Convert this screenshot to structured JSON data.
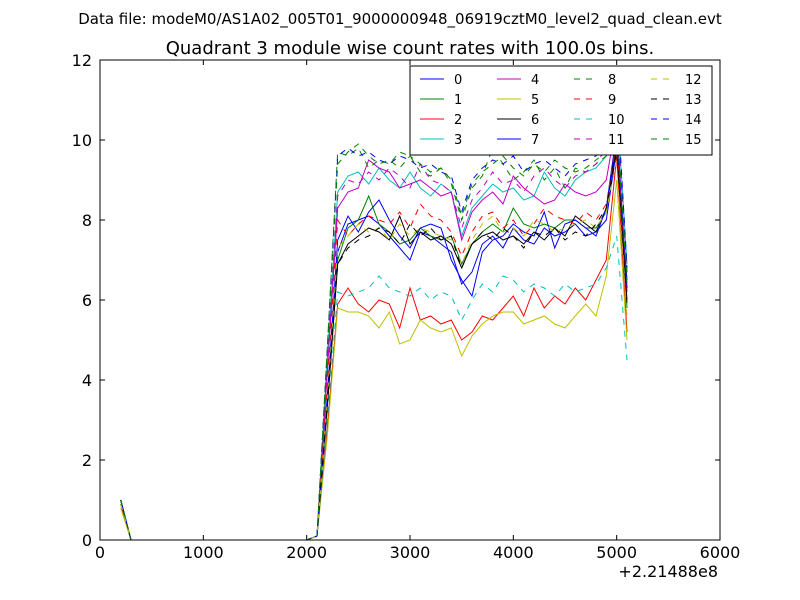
{
  "suptitle": "Data file: modeM0/AS1A02_005T01_9000000948_06919cztM0_level2_quad_clean.evt",
  "chart_data": {
    "type": "line",
    "title": "Quadrant 3 module wise count rates with 100.0s bins.",
    "xlabel": "",
    "ylabel": "",
    "x_offset_label": "+2.21488e8",
    "xlim": [
      0,
      6000
    ],
    "ylim": [
      0,
      12
    ],
    "x_ticks": [
      0,
      1000,
      2000,
      3000,
      4000,
      5000,
      6000
    ],
    "y_ticks": [
      0,
      2,
      4,
      6,
      8,
      10,
      12
    ],
    "grid": false,
    "legend_placement": "top-right",
    "legend_columns": 4,
    "x": [
      200,
      300,
      400,
      500,
      600,
      700,
      800,
      900,
      1000,
      1100,
      1200,
      1300,
      1400,
      1500,
      1600,
      1700,
      1800,
      1900,
      2000,
      2100,
      2200,
      2300,
      2400,
      2500,
      2600,
      2700,
      2800,
      2900,
      3000,
      3100,
      3200,
      3300,
      3400,
      3500,
      3600,
      3700,
      3800,
      3900,
      4000,
      4100,
      4200,
      4300,
      4400,
      4500,
      4600,
      4700,
      4800,
      4900,
      5000,
      5100
    ],
    "series": [
      {
        "name": "0",
        "color": "#0000ff",
        "dash": false,
        "values": [
          1.0,
          0.0,
          0,
          0,
          0,
          0,
          0,
          0,
          0,
          0,
          0,
          0,
          0,
          0,
          0,
          0,
          0,
          0,
          0,
          0.1,
          3.5,
          7.2,
          7.9,
          8.0,
          8.1,
          7.9,
          7.6,
          7.3,
          7.0,
          7.7,
          7.6,
          7.4,
          7.2,
          6.4,
          6.7,
          7.4,
          7.6,
          7.3,
          7.8,
          7.5,
          7.4,
          7.8,
          7.6,
          7.7,
          7.9,
          7.6,
          7.7,
          8.0,
          9.8,
          6.5
        ]
      },
      {
        "name": "1",
        "color": "#008000",
        "dash": false,
        "values": [
          0.9,
          0.0,
          0,
          0,
          0,
          0,
          0,
          0,
          0,
          0,
          0,
          0,
          0,
          0,
          0,
          0,
          0,
          0,
          0,
          0.1,
          3.4,
          7.0,
          7.8,
          8.0,
          8.6,
          7.9,
          7.7,
          7.4,
          7.5,
          7.8,
          7.6,
          7.5,
          7.6,
          6.9,
          7.4,
          7.7,
          7.9,
          7.7,
          8.3,
          7.9,
          7.8,
          7.9,
          7.8,
          8.0,
          8.0,
          7.8,
          7.8,
          8.2,
          10.2,
          5.8
        ]
      },
      {
        "name": "2",
        "color": "#ff0000",
        "dash": false,
        "values": [
          0.9,
          0.0,
          0,
          0,
          0,
          0,
          0,
          0,
          0,
          0,
          0,
          0,
          0,
          0,
          0,
          0,
          0,
          0,
          0,
          0.1,
          2.8,
          5.9,
          6.3,
          5.9,
          5.7,
          6.0,
          5.9,
          5.3,
          6.3,
          5.5,
          5.6,
          5.4,
          5.5,
          5.0,
          5.2,
          5.6,
          5.5,
          5.8,
          6.1,
          5.6,
          6.3,
          5.8,
          6.1,
          5.9,
          6.3,
          6.0,
          6.5,
          7.0,
          9.6,
          5.2
        ]
      },
      {
        "name": "3",
        "color": "#00bfbf",
        "dash": false,
        "values": [
          1.0,
          0.0,
          0,
          0,
          0,
          0,
          0,
          0,
          0,
          0,
          0,
          0,
          0,
          0,
          0,
          0,
          0,
          0,
          0,
          0.1,
          4.5,
          8.7,
          9.1,
          9.2,
          8.9,
          9.3,
          9.0,
          8.8,
          9.2,
          8.8,
          8.6,
          8.9,
          8.7,
          7.6,
          8.3,
          8.6,
          8.9,
          8.7,
          8.8,
          8.5,
          8.6,
          9.2,
          8.8,
          8.6,
          9.0,
          9.2,
          9.3,
          9.6,
          11.0,
          6.9
        ]
      },
      {
        "name": "4",
        "color": "#bf00bf",
        "dash": false,
        "values": [
          1.0,
          0.0,
          0,
          0,
          0,
          0,
          0,
          0,
          0,
          0,
          0,
          0,
          0,
          0,
          0,
          0,
          0,
          0,
          0,
          0.1,
          4.2,
          8.3,
          8.7,
          8.8,
          9.5,
          9.3,
          9.2,
          8.8,
          8.9,
          9.0,
          8.8,
          8.6,
          8.7,
          7.5,
          8.2,
          8.5,
          8.7,
          8.4,
          9.1,
          8.8,
          8.6,
          8.4,
          8.5,
          8.9,
          8.7,
          8.6,
          8.7,
          9.0,
          10.5,
          6.2
        ]
      },
      {
        "name": "5",
        "color": "#bfbf00",
        "dash": false,
        "values": [
          0.8,
          0.0,
          0,
          0,
          0,
          0,
          0,
          0,
          0,
          0,
          0,
          0,
          0,
          0,
          0,
          0,
          0,
          0,
          0,
          0.1,
          2.6,
          5.8,
          5.7,
          5.7,
          5.6,
          5.3,
          5.7,
          4.9,
          5.0,
          5.5,
          5.3,
          5.2,
          5.3,
          4.6,
          5.1,
          5.4,
          5.6,
          5.7,
          5.7,
          5.4,
          5.5,
          5.6,
          5.4,
          5.3,
          5.6,
          5.9,
          5.6,
          6.6,
          9.0,
          5.0
        ]
      },
      {
        "name": "6",
        "color": "#000000",
        "dash": false,
        "values": [
          1.0,
          0.0,
          0,
          0,
          0,
          0,
          0,
          0,
          0,
          0,
          0,
          0,
          0,
          0,
          0,
          0,
          0,
          0,
          0,
          0.1,
          3.3,
          6.9,
          7.4,
          7.6,
          7.8,
          7.7,
          7.5,
          8.1,
          7.4,
          7.7,
          7.5,
          7.6,
          7.4,
          6.8,
          7.4,
          7.6,
          7.7,
          7.5,
          7.6,
          7.4,
          7.7,
          7.5,
          7.8,
          7.6,
          8.1,
          7.9,
          7.7,
          8.3,
          9.9,
          6.0
        ]
      },
      {
        "name": "7",
        "color": "#0000ff",
        "dash": false,
        "values": [
          1.0,
          0.0,
          0,
          0,
          0,
          0,
          0,
          0,
          0,
          0,
          0,
          0,
          0,
          0,
          0,
          0,
          0,
          0,
          0,
          0.1,
          3.6,
          7.5,
          8.1,
          7.7,
          8.2,
          8.5,
          8.0,
          7.6,
          7.3,
          7.8,
          7.9,
          7.8,
          7.0,
          6.5,
          6.1,
          7.2,
          7.5,
          7.6,
          7.9,
          7.7,
          7.6,
          8.2,
          7.3,
          7.9,
          8.0,
          7.8,
          7.6,
          8.3,
          10.2,
          6.3
        ]
      },
      {
        "name": "8",
        "color": "#008000",
        "dash": true,
        "values": [
          0.9,
          0.0,
          0,
          0,
          0,
          0,
          0,
          0,
          0,
          0,
          0,
          0,
          0,
          0,
          0,
          0,
          0,
          0,
          0,
          0.1,
          4.8,
          9.7,
          9.6,
          9.8,
          9.3,
          9.5,
          9.4,
          9.7,
          9.6,
          9.2,
          9.1,
          9.3,
          8.9,
          8.0,
          8.8,
          9.1,
          9.8,
          9.4,
          9.0,
          9.2,
          9.5,
          9.0,
          9.3,
          8.8,
          9.3,
          9.2,
          9.4,
          9.6,
          10.4,
          6.4
        ]
      },
      {
        "name": "9",
        "color": "#ff0000",
        "dash": true,
        "values": [
          0.9,
          0.0,
          0,
          0,
          0,
          0,
          0,
          0,
          0,
          0,
          0,
          0,
          0,
          0,
          0,
          0,
          0,
          0,
          0,
          0.1,
          3.9,
          8.0,
          7.6,
          7.9,
          8.1,
          8.0,
          7.9,
          8.2,
          7.8,
          8.4,
          8.1,
          8.0,
          7.7,
          7.1,
          7.7,
          8.1,
          8.2,
          7.8,
          8.0,
          7.6,
          7.9,
          8.3,
          8.1,
          8.0,
          7.9,
          8.2,
          8.0,
          8.4,
          10.0,
          6.0
        ]
      },
      {
        "name": "10",
        "color": "#00bfbf",
        "dash": true,
        "values": [
          0.9,
          0.0,
          0,
          0,
          0,
          0,
          0,
          0,
          0,
          0,
          0,
          0,
          0,
          0,
          0,
          0,
          0,
          0,
          0,
          0.1,
          3.0,
          6.2,
          6.1,
          6.2,
          6.3,
          6.6,
          6.3,
          6.2,
          6.1,
          6.3,
          6.0,
          6.2,
          6.1,
          5.5,
          6.0,
          6.4,
          6.2,
          6.6,
          6.5,
          6.2,
          6.4,
          6.3,
          6.1,
          6.4,
          6.2,
          6.3,
          6.4,
          6.8,
          7.6,
          4.5
        ]
      },
      {
        "name": "11",
        "color": "#bf00bf",
        "dash": true,
        "values": [
          1.0,
          0.0,
          0,
          0,
          0,
          0,
          0,
          0,
          0,
          0,
          0,
          0,
          0,
          0,
          0,
          0,
          0,
          0,
          0,
          0.1,
          4.4,
          8.6,
          9.0,
          8.9,
          9.2,
          9.0,
          9.3,
          9.1,
          8.8,
          9.4,
          9.0,
          8.9,
          8.7,
          7.8,
          8.5,
          8.8,
          9.2,
          8.9,
          9.0,
          8.7,
          9.1,
          9.3,
          9.0,
          8.8,
          9.1,
          9.2,
          9.4,
          9.8,
          11.0,
          6.7
        ]
      },
      {
        "name": "12",
        "color": "#bfbf00",
        "dash": true,
        "values": [
          0.9,
          0.0,
          0,
          0,
          0,
          0,
          0,
          0,
          0,
          0,
          0,
          0,
          0,
          0,
          0,
          0,
          0,
          0,
          0,
          0.1,
          3.5,
          7.3,
          7.6,
          7.9,
          7.7,
          7.8,
          7.5,
          7.9,
          7.6,
          7.8,
          7.7,
          7.6,
          7.5,
          6.9,
          7.5,
          7.9,
          8.1,
          7.7,
          7.8,
          7.6,
          8.0,
          7.9,
          7.7,
          7.8,
          7.9,
          8.0,
          7.8,
          8.2,
          9.5,
          5.6
        ]
      },
      {
        "name": "13",
        "color": "#000000",
        "dash": true,
        "values": [
          1.0,
          0.0,
          0,
          0,
          0,
          0,
          0,
          0,
          0,
          0,
          0,
          0,
          0,
          0,
          0,
          0,
          0,
          0,
          0,
          0.1,
          3.4,
          6.9,
          7.3,
          7.5,
          7.6,
          7.8,
          7.7,
          7.4,
          7.9,
          7.6,
          7.8,
          7.5,
          7.6,
          6.8,
          7.4,
          7.7,
          7.5,
          7.8,
          7.6,
          7.3,
          7.7,
          7.6,
          7.8,
          7.5,
          7.7,
          7.6,
          7.9,
          8.3,
          9.7,
          5.9
        ]
      },
      {
        "name": "14",
        "color": "#0000ff",
        "dash": true,
        "values": [
          1.0,
          0.0,
          0,
          0,
          0,
          0,
          0,
          0,
          0,
          0,
          0,
          0,
          0,
          0,
          0,
          0,
          0,
          0,
          0,
          0.1,
          4.8,
          9.6,
          9.8,
          9.6,
          9.7,
          9.5,
          9.4,
          9.6,
          9.5,
          9.3,
          9.4,
          9.2,
          9.1,
          8.2,
          9.0,
          9.3,
          9.5,
          9.4,
          9.6,
          9.2,
          9.4,
          9.5,
          9.3,
          9.1,
          9.4,
          9.5,
          9.6,
          9.9,
          11.3,
          6.8
        ]
      },
      {
        "name": "15",
        "color": "#008000",
        "dash": true,
        "values": [
          1.0,
          0.0,
          0,
          0,
          0,
          0,
          0,
          0,
          0,
          0,
          0,
          0,
          0,
          0,
          0,
          0,
          0,
          0,
          0,
          0.1,
          4.7,
          9.4,
          9.7,
          9.9,
          9.6,
          9.4,
          9.5,
          9.3,
          9.6,
          9.4,
          9.2,
          9.3,
          9.0,
          8.1,
          8.9,
          9.2,
          9.4,
          9.6,
          9.3,
          9.1,
          9.4,
          9.2,
          9.5,
          9.3,
          9.2,
          9.3,
          9.5,
          9.7,
          10.6,
          6.6
        ]
      }
    ]
  }
}
